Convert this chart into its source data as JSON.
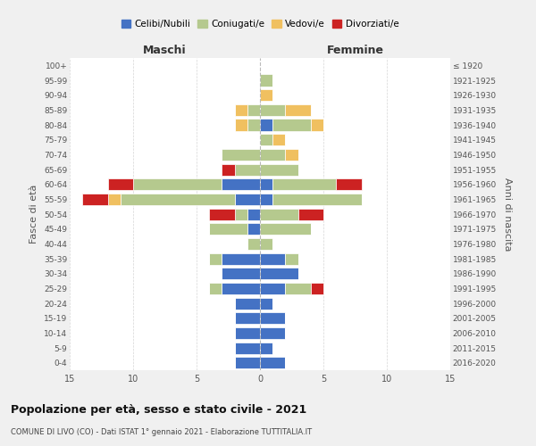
{
  "age_groups": [
    "0-4",
    "5-9",
    "10-14",
    "15-19",
    "20-24",
    "25-29",
    "30-34",
    "35-39",
    "40-44",
    "45-49",
    "50-54",
    "55-59",
    "60-64",
    "65-69",
    "70-74",
    "75-79",
    "80-84",
    "85-89",
    "90-94",
    "95-99",
    "100+"
  ],
  "birth_years": [
    "2016-2020",
    "2011-2015",
    "2006-2010",
    "2001-2005",
    "1996-2000",
    "1991-1995",
    "1986-1990",
    "1981-1985",
    "1976-1980",
    "1971-1975",
    "1966-1970",
    "1961-1965",
    "1956-1960",
    "1951-1955",
    "1946-1950",
    "1941-1945",
    "1936-1940",
    "1931-1935",
    "1926-1930",
    "1921-1925",
    "≤ 1920"
  ],
  "male": {
    "celibi": [
      2,
      2,
      2,
      2,
      2,
      3,
      3,
      3,
      0,
      1,
      1,
      2,
      3,
      0,
      0,
      0,
      0,
      0,
      0,
      0,
      0
    ],
    "coniugati": [
      0,
      0,
      0,
      0,
      0,
      1,
      0,
      1,
      1,
      3,
      1,
      9,
      7,
      2,
      3,
      0,
      1,
      1,
      0,
      0,
      0
    ],
    "vedovi": [
      0,
      0,
      0,
      0,
      0,
      0,
      0,
      0,
      0,
      0,
      0,
      1,
      0,
      0,
      0,
      0,
      1,
      1,
      0,
      0,
      0
    ],
    "divorziati": [
      0,
      0,
      0,
      0,
      0,
      0,
      0,
      0,
      0,
      0,
      2,
      2,
      2,
      1,
      0,
      0,
      0,
      0,
      0,
      0,
      0
    ]
  },
  "female": {
    "nubili": [
      2,
      1,
      2,
      2,
      1,
      2,
      3,
      2,
      0,
      0,
      0,
      1,
      1,
      0,
      0,
      0,
      1,
      0,
      0,
      0,
      0
    ],
    "coniugate": [
      0,
      0,
      0,
      0,
      0,
      2,
      0,
      1,
      1,
      4,
      3,
      7,
      5,
      3,
      2,
      1,
      3,
      2,
      0,
      1,
      0
    ],
    "vedove": [
      0,
      0,
      0,
      0,
      0,
      0,
      0,
      0,
      0,
      0,
      0,
      0,
      0,
      0,
      1,
      1,
      1,
      2,
      1,
      0,
      0
    ],
    "divorziate": [
      0,
      0,
      0,
      0,
      0,
      1,
      0,
      0,
      0,
      0,
      2,
      0,
      2,
      0,
      0,
      0,
      0,
      0,
      0,
      0,
      0
    ]
  },
  "colors": {
    "celibi_nubili": "#4472c4",
    "coniugati": "#b5c98e",
    "vedovi": "#f0c060",
    "divorziati": "#cc2222"
  },
  "xlim": 15,
  "title": "Popolazione per età, sesso e stato civile - 2021",
  "subtitle": "COMUNE DI LIVO (CO) - Dati ISTAT 1° gennaio 2021 - Elaborazione TUTTITALIA.IT",
  "ylabel_left": "Fasce di età",
  "ylabel_right": "Anni di nascita",
  "xlabel_male": "Maschi",
  "xlabel_female": "Femmine",
  "bg_color": "#f0f0f0",
  "plot_bg_color": "#ffffff"
}
